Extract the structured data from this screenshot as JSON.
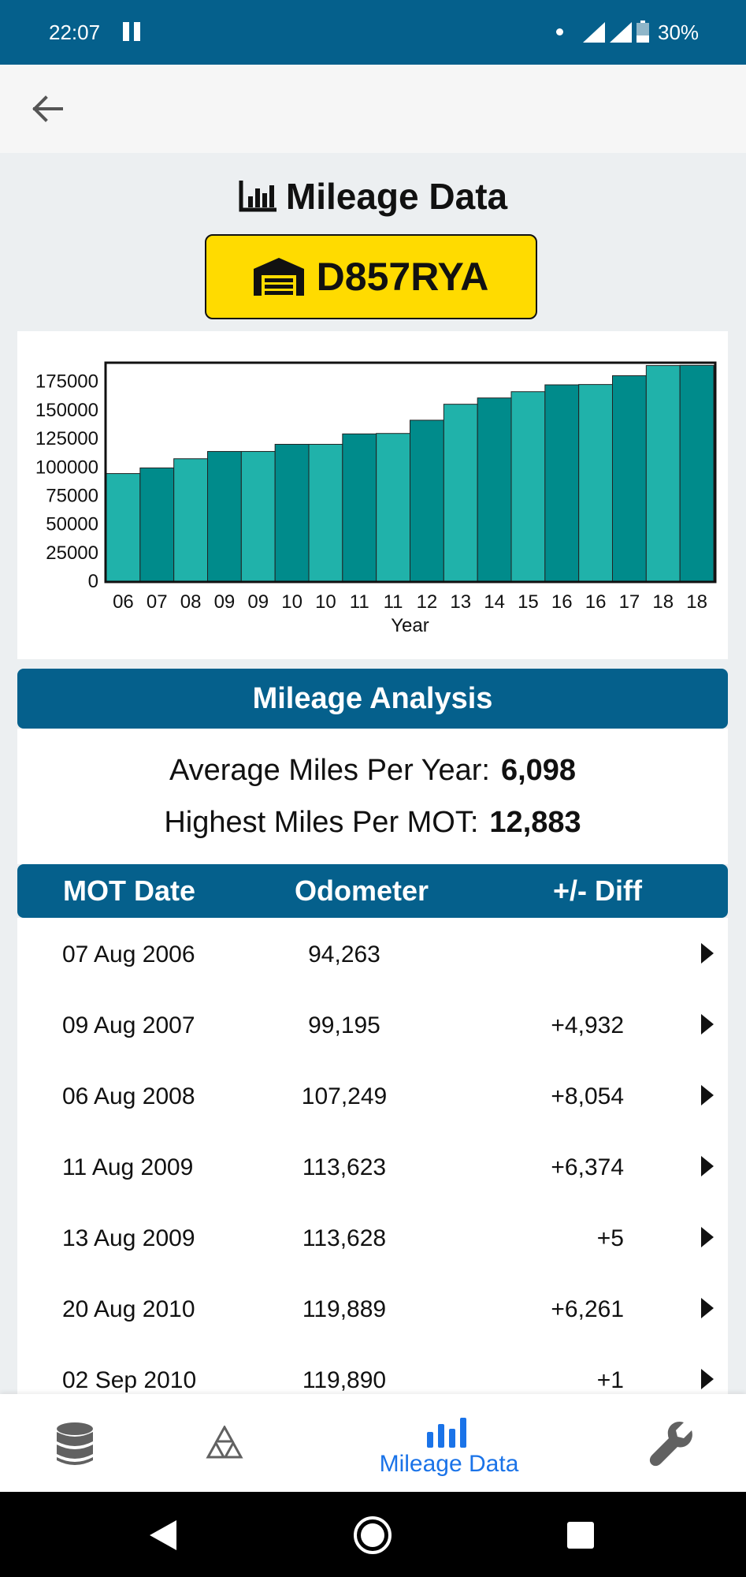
{
  "status_bar": {
    "time": "22:07",
    "battery": "30%"
  },
  "title": "Mileage Data",
  "plate": "D857RYA",
  "chart_data": {
    "type": "bar",
    "categories": [
      "06",
      "07",
      "08",
      "09",
      "09",
      "10",
      "10",
      "11",
      "11",
      "12",
      "13",
      "14",
      "15",
      "16",
      "16",
      "17",
      "18",
      "18"
    ],
    "values": [
      94263,
      99195,
      107249,
      113623,
      113628,
      119889,
      119890,
      129000,
      129400,
      141000,
      155000,
      160500,
      166000,
      172000,
      172300,
      180000,
      188900,
      189100
    ],
    "xlabel": "Year",
    "ylabel": "",
    "ylim": [
      0,
      190000
    ],
    "yticks": [
      0,
      25000,
      50000,
      75000,
      100000,
      125000,
      150000,
      175000
    ],
    "colors": [
      "#20b2aa",
      "#008b8b"
    ],
    "grid": false
  },
  "analysis": {
    "header": "Mileage Analysis",
    "avg_label": "Average Miles Per Year:",
    "avg_value": "6,098",
    "high_label": "Highest Miles Per MOT:",
    "high_value": "12,883"
  },
  "table": {
    "headers": [
      "MOT Date",
      "Odometer",
      "+/- Diff"
    ],
    "rows": [
      {
        "date": "07 Aug 2006",
        "odometer": "94,263",
        "diff": ""
      },
      {
        "date": "09 Aug 2007",
        "odometer": "99,195",
        "diff": "+4,932"
      },
      {
        "date": "06 Aug 2008",
        "odometer": "107,249",
        "diff": "+8,054"
      },
      {
        "date": "11 Aug 2009",
        "odometer": "113,623",
        "diff": "+6,374"
      },
      {
        "date": "13 Aug 2009",
        "odometer": "113,628",
        "diff": "+5"
      },
      {
        "date": "20 Aug 2010",
        "odometer": "119,889",
        "diff": "+6,261"
      },
      {
        "date": "02 Sep 2010",
        "odometer": "119,890",
        "diff": "+1"
      }
    ]
  },
  "bottom_nav": {
    "items": [
      {
        "icon": "database-icon",
        "label": ""
      },
      {
        "icon": "mot-triangle-icon",
        "label": ""
      },
      {
        "icon": "bar-chart-icon",
        "label": "Mileage Data",
        "active": true
      },
      {
        "icon": "wrench-icon",
        "label": ""
      }
    ],
    "active_color": "#1a73e8",
    "inactive_color": "#616161"
  }
}
